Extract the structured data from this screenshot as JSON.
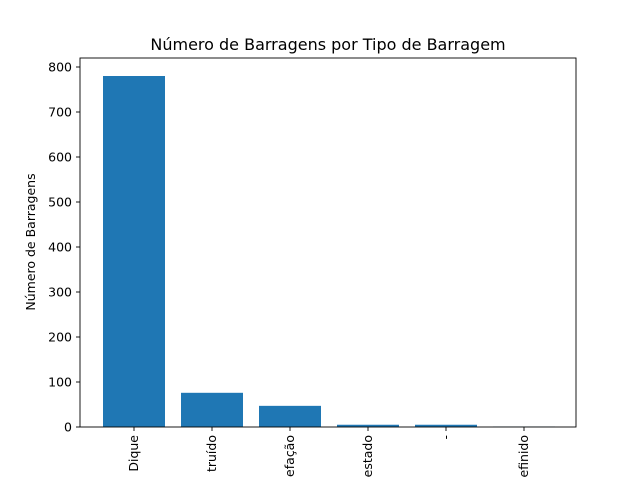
{
  "chart_data": {
    "type": "bar",
    "title": "Número de Barragens por Tipo de Barragem",
    "xlabel": "",
    "ylabel": "Número de Barragens",
    "categories": [
      "Dique",
      "truído",
      "efação",
      "estado",
      "-",
      "efinido"
    ],
    "values": [
      780,
      76,
      47,
      5,
      5,
      1
    ],
    "ylim": [
      0,
      820
    ],
    "yticks": [
      0,
      100,
      200,
      300,
      400,
      500,
      600,
      700,
      800
    ],
    "bar_color": "#1f77b4",
    "grid": false,
    "legend": "none"
  }
}
